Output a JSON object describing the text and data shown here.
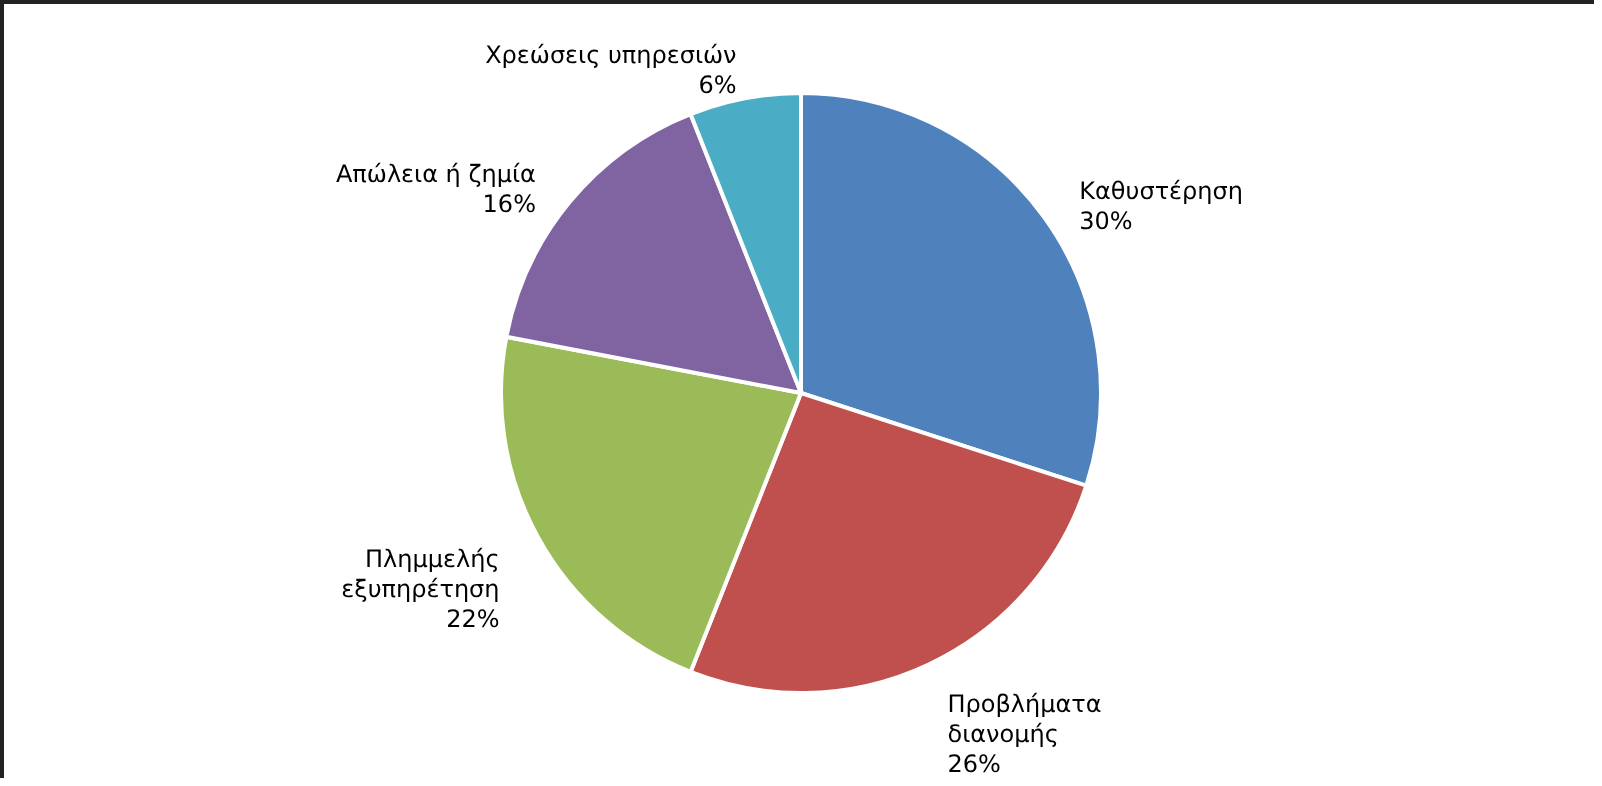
{
  "chart_data": {
    "type": "pie",
    "categories": [
      "Καθυστέρηση",
      "Προβλήματα διανομής",
      "Πλημμελής εξυπηρέτηση",
      "Απώλεια ή ζημία",
      "Χρεώσεις υπηρεσιών"
    ],
    "values": [
      30,
      26,
      22,
      16,
      6
    ],
    "colors": [
      "#4f81bd",
      "#c0504d",
      "#9bbb59",
      "#8064a2",
      "#4bacc6"
    ],
    "value_labels": [
      "30%",
      "26%",
      "22%",
      "16%",
      "6%"
    ]
  }
}
